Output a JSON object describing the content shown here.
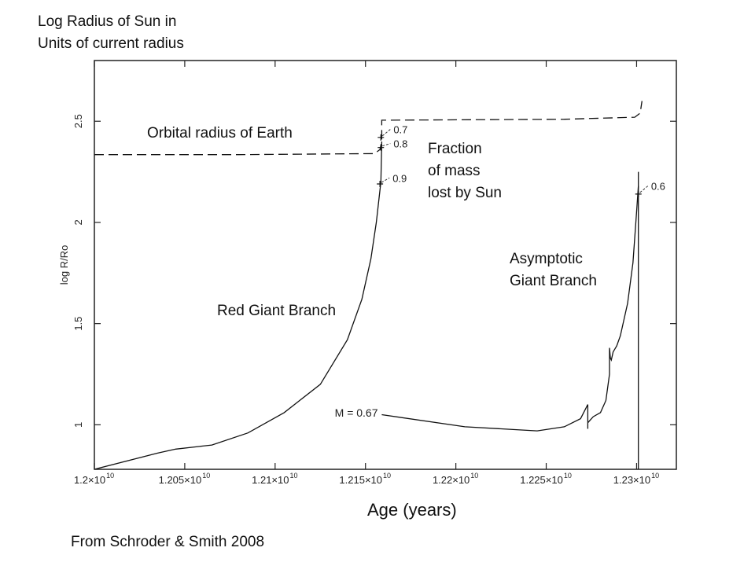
{
  "header": {
    "title_line1": "Log Radius of Sun in",
    "title_line2": "Units of current radius"
  },
  "footer": {
    "source": "From Schroder & Smith  2008"
  },
  "chart_data": {
    "type": "line",
    "xlabel": "Age (years)",
    "ylabel": "log R/Ro",
    "xlim": [
      12000000000.0,
      12322000000.0
    ],
    "ylim": [
      0.78,
      2.8
    ],
    "grid": false,
    "x_ticks": [
      {
        "value": 12000000000.0,
        "label": "1.2×10",
        "exp": "10"
      },
      {
        "value": 12050000000.0,
        "label": "1.205×10",
        "exp": "10"
      },
      {
        "value": 12100000000.0,
        "label": "1.21×10",
        "exp": "10"
      },
      {
        "value": 12150000000.0,
        "label": "1.215×10",
        "exp": "10"
      },
      {
        "value": 12200000000.0,
        "label": "1.22×10",
        "exp": "10"
      },
      {
        "value": 12250000000.0,
        "label": "1.225×10",
        "exp": "10"
      },
      {
        "value": 12300000000.0,
        "label": "1.23×10",
        "exp": "10"
      }
    ],
    "y_ticks": [
      {
        "value": 1,
        "label": "1"
      },
      {
        "value": 1.5,
        "label": "1.5"
      },
      {
        "value": 2,
        "label": "2"
      },
      {
        "value": 2.5,
        "label": "2.5"
      }
    ],
    "series": [
      {
        "style": "dashed",
        "x": [
          12000000000.0,
          12080000000.0,
          12155000000.0,
          12158000000.0,
          12159000000.0,
          12159000000.0,
          12260000000.0,
          12299000000.0,
          12302000000.0,
          12303000000.0
        ],
        "y": [
          2.335,
          2.335,
          2.34,
          2.36,
          2.4,
          2.505,
          2.51,
          2.52,
          2.54,
          2.6
        ]
      },
      {
        "style": "solid",
        "x": [
          12000000000.0,
          12035000000.0,
          12045000000.0,
          12060000000.0,
          12065000000.0,
          12085000000.0,
          12105000000.0,
          12125000000.0,
          12140000000.0,
          12148000000.0,
          12153000000.0,
          12156000000.0,
          12158500000.0,
          12159000000.0
        ],
        "y": [
          0.78,
          0.86,
          0.88,
          0.895,
          0.9,
          0.96,
          1.06,
          1.2,
          1.42,
          1.62,
          1.82,
          2.0,
          2.2,
          2.4
        ]
      },
      {
        "style": "solid",
        "x": [
          12159000000.0,
          12205000000.0,
          12245000000.0,
          12260000000.0,
          12269000000.0,
          12273000000.0,
          12273000000.0,
          12273000000.0,
          12276000000.0,
          12280000000.0,
          12283000000.0,
          12285000000.0,
          12285000000.0,
          12285500000.0,
          12286000000.0,
          12287000000.0,
          12289000000.0,
          12291000000.0,
          12295000000.0,
          12298000000.0,
          12300000000.0,
          12301000000.0
        ],
        "y": [
          1.05,
          0.99,
          0.97,
          0.99,
          1.03,
          1.1,
          0.98,
          1.01,
          1.04,
          1.06,
          1.12,
          1.25,
          1.38,
          1.33,
          1.32,
          1.36,
          1.39,
          1.44,
          1.6,
          1.8,
          2.05,
          2.18
        ]
      },
      {
        "style": "solid",
        "x": [
          12301000000.0,
          12301000000.0
        ],
        "y": [
          0.78,
          2.25
        ]
      }
    ],
    "markers": [
      {
        "x": 12158500000.0,
        "y": 2.42,
        "label": "0.7",
        "label_dx": 7000000.0,
        "label_y": 2.46
      },
      {
        "x": 12158500000.0,
        "y": 2.37,
        "label": "0.8",
        "label_dx": 7000000.0,
        "label_y": 2.39
      },
      {
        "x": 12158000000.0,
        "y": 2.19,
        "label": "0.9",
        "label_dx": 7000000.0,
        "label_y": 2.22
      },
      {
        "x": 12301000000.0,
        "y": 2.14,
        "label": "0.6",
        "label_dx": 7000000.0,
        "label_y": 2.18
      }
    ],
    "annotations": [
      {
        "text": "M =  0.67",
        "x": 12133000000.0,
        "y": 1.06,
        "kind": "plot"
      },
      {
        "text": "Orbital radius of Earth",
        "kind": "overlay",
        "pos": "earth"
      },
      {
        "text_lines": [
          "Fraction",
          "of mass",
          "lost by Sun"
        ],
        "kind": "overlay",
        "pos": "fraction"
      },
      {
        "text_lines": [
          "Asymptotic",
          "Giant Branch"
        ],
        "kind": "overlay",
        "pos": "agb"
      },
      {
        "text": "Red Giant Branch",
        "kind": "overlay",
        "pos": "rgb"
      }
    ]
  }
}
